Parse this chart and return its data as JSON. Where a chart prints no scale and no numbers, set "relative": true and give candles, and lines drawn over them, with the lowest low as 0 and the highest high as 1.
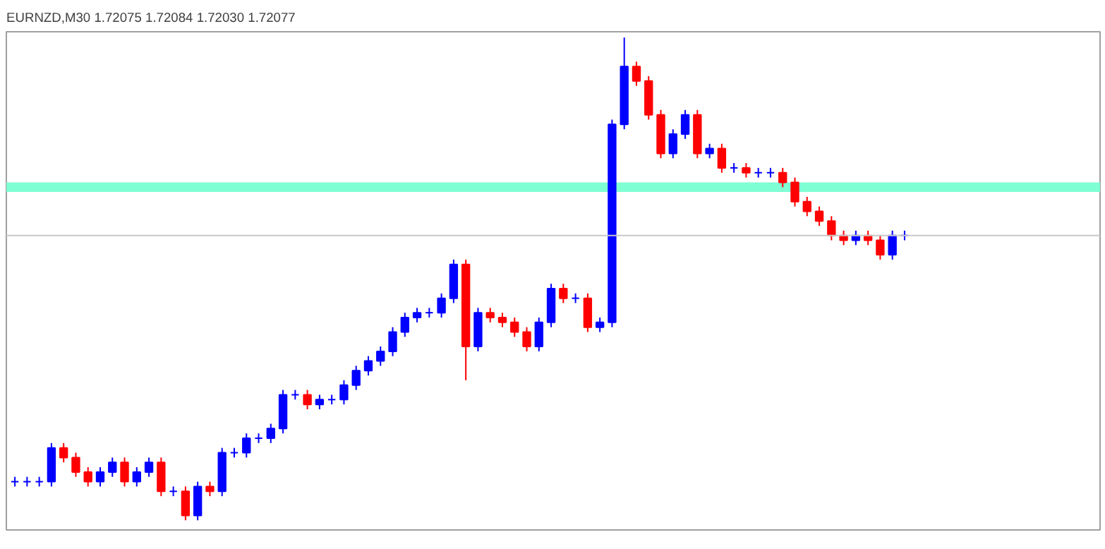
{
  "chart_data": {
    "type": "candlestick",
    "title": "EURNZD,M30 1.72075 1.72084 1.72030 1.72077",
    "relative": true,
    "categories": [
      null,
      null,
      null,
      null,
      null,
      null,
      null,
      null,
      null,
      null,
      null,
      null,
      null,
      null,
      null,
      null,
      null,
      null,
      null,
      null,
      null,
      null,
      null,
      null,
      null,
      null,
      null,
      null,
      null,
      null,
      null,
      null,
      null,
      null,
      null,
      null,
      null,
      null,
      null,
      null,
      null,
      null,
      null,
      null,
      null,
      null,
      null,
      null,
      null,
      null,
      null,
      null,
      null,
      null,
      null,
      null,
      null,
      null,
      null,
      null,
      null,
      null,
      null,
      null,
      null,
      null,
      null,
      null,
      null,
      null,
      null,
      null,
      null,
      null
    ],
    "colors": [
      "#0000ff",
      "#0000ff",
      "#0000ff",
      "#0000ff",
      "#ff0000",
      "#ff0000",
      "#ff0000",
      "#0000ff",
      "#0000ff",
      "#ff0000",
      "#0000ff",
      "#0000ff",
      "#ff0000",
      "#0000ff",
      "#ff0000",
      "#0000ff",
      "#ff0000",
      "#0000ff",
      "#0000ff",
      "#0000ff",
      "#0000ff",
      "#0000ff",
      "#0000ff",
      "#0000ff",
      "#ff0000",
      "#0000ff",
      "#0000ff",
      "#0000ff",
      "#0000ff",
      "#0000ff",
      "#0000ff",
      "#0000ff",
      "#0000ff",
      "#0000ff",
      "#0000ff",
      "#0000ff",
      "#0000ff",
      "#ff0000",
      "#0000ff",
      "#ff0000",
      "#ff0000",
      "#ff0000",
      "#ff0000",
      "#0000ff",
      "#0000ff",
      "#ff0000",
      "#0000ff",
      "#ff0000",
      "#0000ff",
      "#0000ff",
      "#0000ff",
      "#ff0000",
      "#ff0000",
      "#ff0000",
      "#0000ff",
      "#0000ff",
      "#ff0000",
      "#0000ff",
      "#ff0000",
      "#0000ff",
      "#ff0000",
      "#0000ff",
      "#0000ff",
      "#ff0000",
      "#ff0000",
      "#ff0000",
      "#ff0000",
      "#ff0000",
      "#ff0000",
      "#0000ff",
      "#ff0000",
      "#ff0000",
      "#0000ff",
      "#0000ff"
    ],
    "ohlc": [
      [
        0.08,
        0.09,
        0.07,
        0.08
      ],
      [
        0.08,
        0.09,
        0.07,
        0.08
      ],
      [
        0.08,
        0.09,
        0.07,
        0.08
      ],
      [
        0.08,
        0.16,
        0.07,
        0.15
      ],
      [
        0.15,
        0.16,
        0.12,
        0.13
      ],
      [
        0.13,
        0.14,
        0.09,
        0.1
      ],
      [
        0.1,
        0.11,
        0.07,
        0.08
      ],
      [
        0.08,
        0.11,
        0.07,
        0.1
      ],
      [
        0.1,
        0.13,
        0.09,
        0.12
      ],
      [
        0.12,
        0.13,
        0.07,
        0.08
      ],
      [
        0.08,
        0.11,
        0.07,
        0.1
      ],
      [
        0.1,
        0.13,
        0.09,
        0.12
      ],
      [
        0.12,
        0.13,
        0.05,
        0.06
      ],
      [
        0.06,
        0.07,
        0.05,
        0.06
      ],
      [
        0.06,
        0.07,
        0.0,
        0.01
      ],
      [
        0.01,
        0.08,
        0.0,
        0.07
      ],
      [
        0.07,
        0.08,
        0.05,
        0.06
      ],
      [
        0.06,
        0.15,
        0.05,
        0.14
      ],
      [
        0.14,
        0.15,
        0.13,
        0.14
      ],
      [
        0.14,
        0.18,
        0.13,
        0.17
      ],
      [
        0.17,
        0.18,
        0.16,
        0.17
      ],
      [
        0.17,
        0.2,
        0.16,
        0.19
      ],
      [
        0.19,
        0.27,
        0.18,
        0.26
      ],
      [
        0.26,
        0.27,
        0.25,
        0.26
      ],
      [
        0.26,
        0.27,
        0.23,
        0.24
      ],
      [
        0.24,
        0.26,
        0.23,
        0.25
      ],
      [
        0.25,
        0.26,
        0.24,
        0.25
      ],
      [
        0.25,
        0.29,
        0.24,
        0.28
      ],
      [
        0.28,
        0.32,
        0.27,
        0.31
      ],
      [
        0.31,
        0.34,
        0.3,
        0.33
      ],
      [
        0.33,
        0.36,
        0.32,
        0.35
      ],
      [
        0.35,
        0.4,
        0.34,
        0.39
      ],
      [
        0.39,
        0.43,
        0.38,
        0.42
      ],
      [
        0.42,
        0.44,
        0.41,
        0.43
      ],
      [
        0.43,
        0.44,
        0.42,
        0.43
      ],
      [
        0.43,
        0.47,
        0.42,
        0.46
      ],
      [
        0.46,
        0.54,
        0.45,
        0.53
      ],
      [
        0.53,
        0.54,
        0.29,
        0.36
      ],
      [
        0.36,
        0.44,
        0.35,
        0.43
      ],
      [
        0.43,
        0.44,
        0.41,
        0.42
      ],
      [
        0.42,
        0.43,
        0.4,
        0.41
      ],
      [
        0.41,
        0.42,
        0.38,
        0.39
      ],
      [
        0.39,
        0.4,
        0.35,
        0.36
      ],
      [
        0.36,
        0.42,
        0.35,
        0.41
      ],
      [
        0.41,
        0.49,
        0.4,
        0.48
      ],
      [
        0.48,
        0.49,
        0.45,
        0.46
      ],
      [
        0.46,
        0.47,
        0.45,
        0.46
      ],
      [
        0.46,
        0.47,
        0.39,
        0.4
      ],
      [
        0.4,
        0.42,
        0.39,
        0.41
      ],
      [
        0.41,
        0.83,
        0.4,
        0.82
      ],
      [
        0.82,
        1.0,
        0.81,
        0.94
      ],
      [
        0.94,
        0.95,
        0.9,
        0.91
      ],
      [
        0.91,
        0.92,
        0.83,
        0.84
      ],
      [
        0.84,
        0.85,
        0.75,
        0.76
      ],
      [
        0.76,
        0.81,
        0.75,
        0.8
      ],
      [
        0.8,
        0.85,
        0.79,
        0.84
      ],
      [
        0.84,
        0.85,
        0.75,
        0.76
      ],
      [
        0.76,
        0.78,
        0.75,
        0.77
      ],
      [
        0.77,
        0.78,
        0.72,
        0.73
      ],
      [
        0.73,
        0.74,
        0.72,
        0.73
      ],
      [
        0.73,
        0.74,
        0.71,
        0.72
      ],
      [
        0.72,
        0.73,
        0.71,
        0.72
      ],
      [
        0.72,
        0.73,
        0.71,
        0.72
      ],
      [
        0.72,
        0.73,
        0.69,
        0.7
      ],
      [
        0.7,
        0.71,
        0.65,
        0.66
      ],
      [
        0.66,
        0.67,
        0.63,
        0.64
      ],
      [
        0.64,
        0.65,
        0.61,
        0.62
      ],
      [
        0.62,
        0.63,
        0.58,
        0.59
      ],
      [
        0.59,
        0.6,
        0.57,
        0.58
      ],
      [
        0.58,
        0.6,
        0.57,
        0.59
      ],
      [
        0.59,
        0.6,
        0.57,
        0.58
      ],
      [
        0.58,
        0.59,
        0.54,
        0.55
      ],
      [
        0.55,
        0.6,
        0.54,
        0.59
      ],
      [
        0.59,
        0.6,
        0.58,
        0.59
      ]
    ],
    "ref_lines": [
      {
        "axis": "y",
        "value": 0.59,
        "color": "#c8c8c8"
      }
    ],
    "bands": [
      {
        "axis": "y",
        "from": 0.68,
        "to": 0.7,
        "color": "#7fffd4"
      }
    ]
  }
}
